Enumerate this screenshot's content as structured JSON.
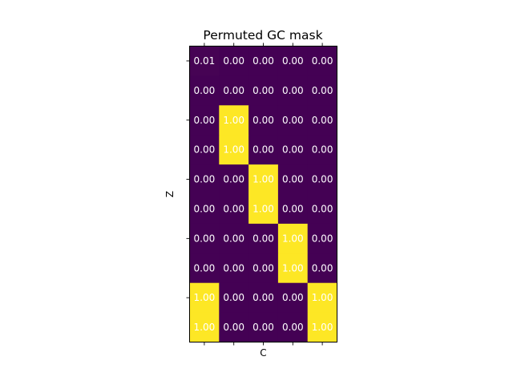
{
  "chart_data": {
    "type": "heatmap",
    "title": "Permuted GC mask",
    "xlabel": "C",
    "ylabel": "Z",
    "colormap": "viridis",
    "colors": {
      "low": "#440154",
      "high": "#fde725",
      "annotation": "#ffffff"
    },
    "value_range": [
      0,
      1
    ],
    "rows": 10,
    "cols": 5,
    "values": [
      [
        0.01,
        0.0,
        0.0,
        0.0,
        0.0
      ],
      [
        0.0,
        0.0,
        0.0,
        0.0,
        0.0
      ],
      [
        0.0,
        1.0,
        0.0,
        0.0,
        0.0
      ],
      [
        0.0,
        1.0,
        0.0,
        0.0,
        0.0
      ],
      [
        0.0,
        0.0,
        1.0,
        0.0,
        0.0
      ],
      [
        0.0,
        0.0,
        1.0,
        0.0,
        0.0
      ],
      [
        0.0,
        0.0,
        0.0,
        1.0,
        0.0
      ],
      [
        0.0,
        0.0,
        0.0,
        1.0,
        0.0
      ],
      [
        1.0,
        0.0,
        0.0,
        0.0,
        1.0
      ],
      [
        1.0,
        0.0,
        0.0,
        0.0,
        1.0
      ]
    ],
    "labels": [
      [
        "0.01",
        "0.00",
        "0.00",
        "0.00",
        "0.00"
      ],
      [
        "0.00",
        "0.00",
        "0.00",
        "0.00",
        "0.00"
      ],
      [
        "0.00",
        "1.00",
        "0.00",
        "0.00",
        "0.00"
      ],
      [
        "0.00",
        "1.00",
        "0.00",
        "0.00",
        "0.00"
      ],
      [
        "0.00",
        "0.00",
        "1.00",
        "0.00",
        "0.00"
      ],
      [
        "0.00",
        "0.00",
        "1.00",
        "0.00",
        "0.00"
      ],
      [
        "0.00",
        "0.00",
        "0.00",
        "1.00",
        "0.00"
      ],
      [
        "0.00",
        "0.00",
        "0.00",
        "1.00",
        "0.00"
      ],
      [
        "1.00",
        "0.00",
        "0.00",
        "0.00",
        "1.00"
      ],
      [
        "1.00",
        "0.00",
        "0.00",
        "0.00",
        "1.00"
      ]
    ],
    "x_tick_labels": false,
    "y_tick_labels": false,
    "grid": false,
    "legend": false
  }
}
